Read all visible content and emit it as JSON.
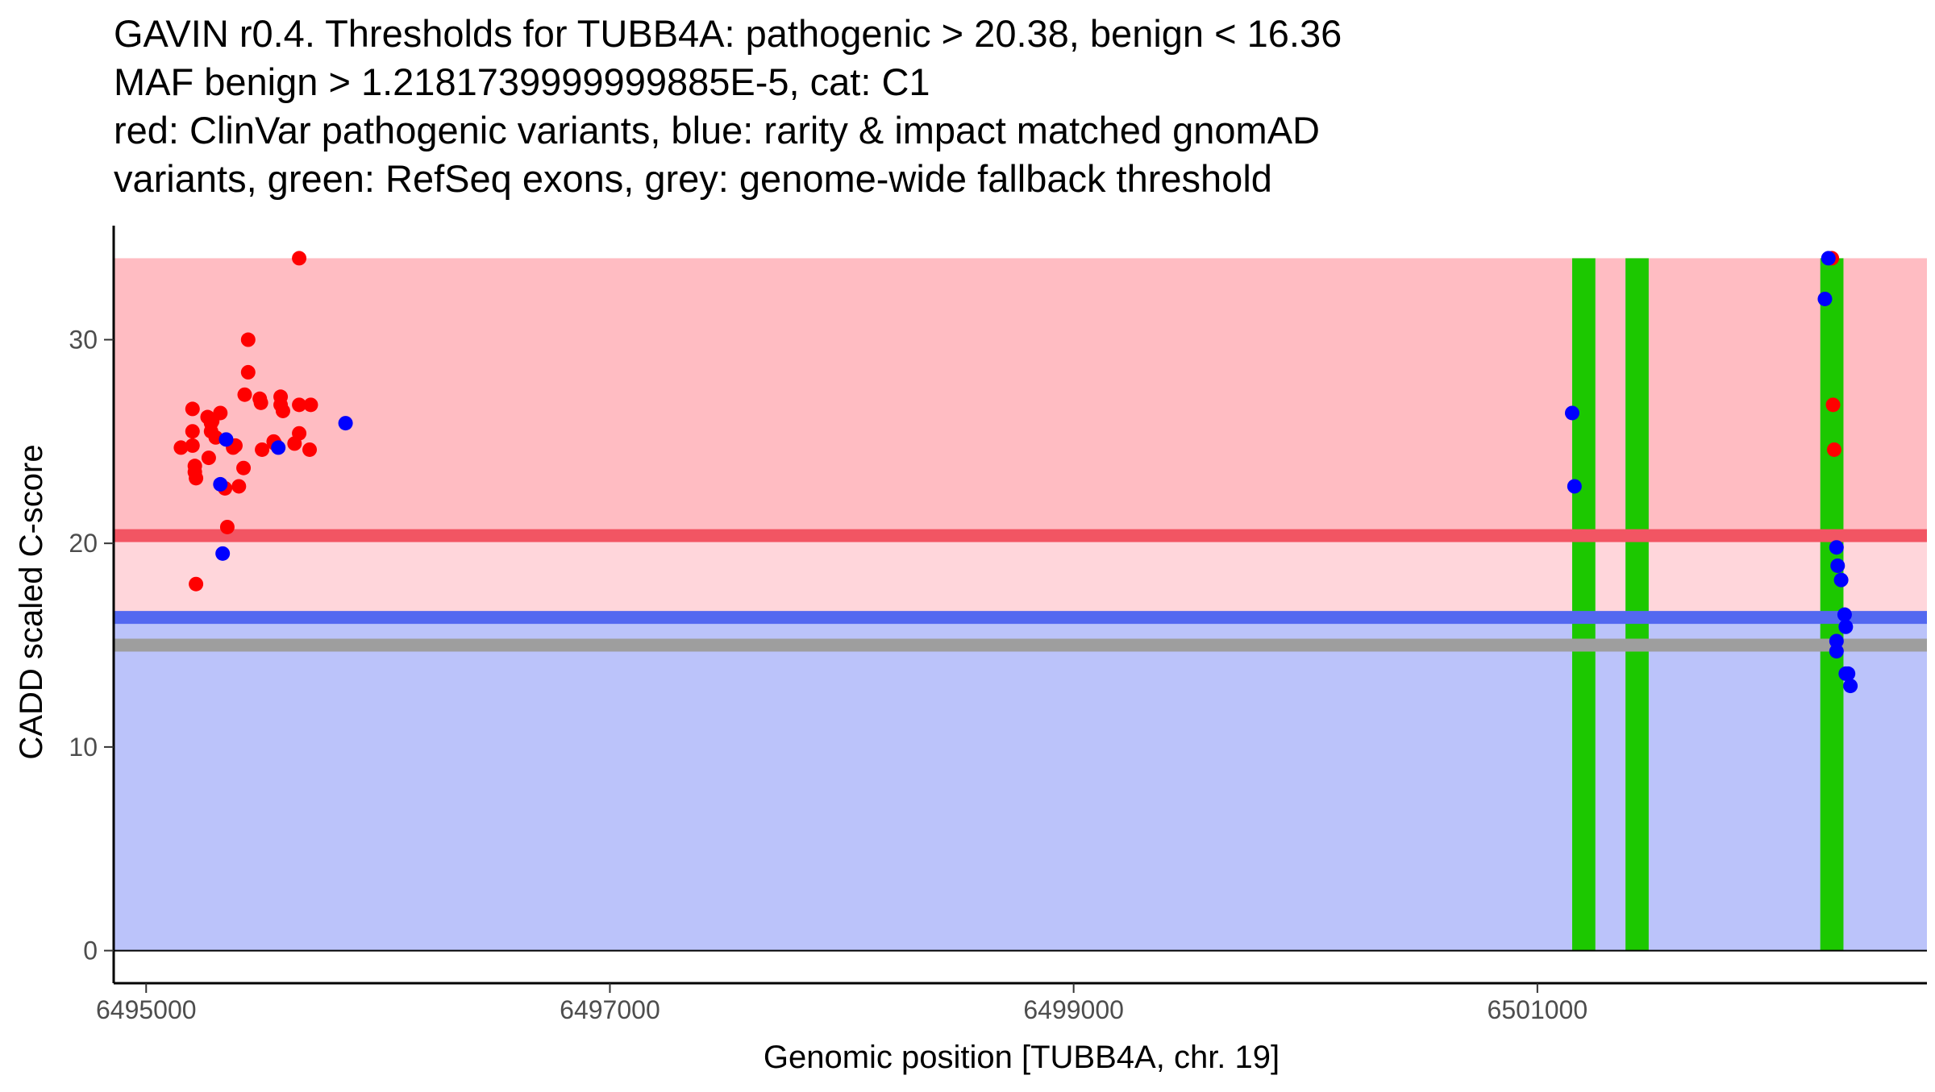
{
  "chart_data": {
    "type": "scatter",
    "title_lines": [
      "GAVIN r0.4. Thresholds for TUBB4A: pathogenic > 20.38, benign < 16.36",
      "MAF benign > 1.2181739999999885E-5, cat: C1",
      "red: ClinVar pathogenic variants, blue: rarity & impact matched gnomAD",
      "variants, green: RefSeq exons, grey: genome-wide fallback threshold"
    ],
    "xlabel": "Genomic position [TUBB4A, chr. 19]",
    "ylabel": "CADD scaled C-score",
    "xlim": [
      6494860,
      6502680
    ],
    "ylim": [
      -1.6,
      35.6
    ],
    "x_ticks": [
      6495000,
      6497000,
      6499000,
      6501000
    ],
    "y_ticks": [
      0,
      10,
      20,
      30
    ],
    "grid": false,
    "thresholds": {
      "pathogenic": 20.38,
      "benign": 16.36,
      "fallback": 15.0,
      "band_top": 34.0
    },
    "exons": [
      {
        "start": 6501150,
        "end": 6501250
      },
      {
        "start": 6501380,
        "end": 6501480
      },
      {
        "start": 6502220,
        "end": 6502320
      }
    ],
    "colors": {
      "pathogenic_band": "#FFBCC2",
      "intermediate_band": "#FFD6DB",
      "benign_band": "#BBC3FA",
      "pathogenic_line": "#F25563",
      "benign_line": "#5368F0",
      "fallback_line": "#9E9E9E",
      "exon": "#1CC800",
      "pathogenic_point": "#FF0000",
      "benign_point": "#0000FF"
    },
    "series": [
      {
        "color": "red",
        "x": [
          6495150,
          6495200,
          6495200,
          6495200,
          6495210,
          6495210,
          6495215,
          6495215,
          6495265,
          6495270,
          6495280,
          6495280,
          6495285,
          6495300,
          6495340,
          6495320,
          6495350,
          6495375,
          6495385,
          6495400,
          6495420,
          6495425,
          6495440,
          6495440,
          6495490,
          6495495,
          6495500,
          6495550,
          6495555,
          6495580,
          6495580,
          6495590,
          6495640,
          6495660,
          6495660,
          6495660,
          6495710,
          6495705,
          6502270,
          6502275,
          6502280
        ],
        "y": [
          24.7,
          26.6,
          24.8,
          25.5,
          23.8,
          23.5,
          23.2,
          18.0,
          26.2,
          24.2,
          25.9,
          25.5,
          26.0,
          25.2,
          22.7,
          26.4,
          20.8,
          24.7,
          24.8,
          22.8,
          23.7,
          27.3,
          30.0,
          28.4,
          27.1,
          26.9,
          24.6,
          25.0,
          24.9,
          27.2,
          26.8,
          26.5,
          24.9,
          25.4,
          34.0,
          26.8,
          26.8,
          24.6,
          34.0,
          26.8,
          24.6
        ]
      },
      {
        "color": "blue",
        "x": [
          6495320,
          6495345,
          6495330,
          6495570,
          6495860,
          6501150,
          6501160,
          6502240,
          6502255,
          6502290,
          6502295,
          6502310,
          6502325,
          6502330,
          6502330,
          6502290,
          6502290,
          6502340,
          6502350
        ],
        "y": [
          22.9,
          25.1,
          19.5,
          24.7,
          25.9,
          26.4,
          22.8,
          32.0,
          34.0,
          19.8,
          18.9,
          18.2,
          16.5,
          15.9,
          13.6,
          15.2,
          14.7,
          13.6,
          13.0
        ]
      }
    ]
  }
}
